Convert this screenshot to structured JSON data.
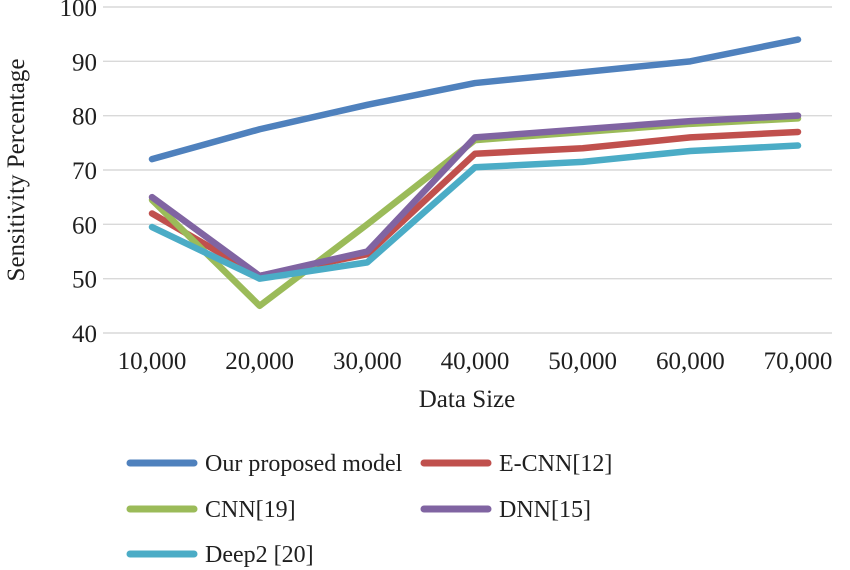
{
  "chart_data": {
    "type": "line",
    "title": "",
    "xlabel": "Data Size",
    "ylabel": "Sensitivity Percentage",
    "categories": [
      "10,000",
      "20,000",
      "30,000",
      "40,000",
      "50,000",
      "60,000",
      "70,000"
    ],
    "series": [
      {
        "name": "Our proposed model",
        "color": "#4F81BD",
        "values": [
          72,
          77.5,
          82,
          86,
          88,
          90,
          94
        ]
      },
      {
        "name": "E-CNN[12]",
        "color": "#C0504D",
        "values": [
          62,
          50.5,
          54.5,
          73,
          74,
          76,
          77
        ]
      },
      {
        "name": "CNN[19]",
        "color": "#9BBB59",
        "values": [
          64.5,
          45,
          60,
          75.5,
          77,
          78.5,
          79.5
        ]
      },
      {
        "name": "DNN[15]",
        "color": "#8064A2",
        "values": [
          65,
          50.5,
          55,
          76,
          77.5,
          79,
          80
        ]
      },
      {
        "name": "Deep2 [20]",
        "color": "#4BACC6",
        "values": [
          59.5,
          50,
          53,
          70.5,
          71.5,
          73.5,
          74.5
        ]
      }
    ],
    "ylim": [
      40,
      100
    ],
    "yticks": [
      100,
      90,
      80,
      70,
      60,
      50,
      40
    ],
    "grid": "horizontal",
    "gridline_color": "#D9D9D9",
    "axis_text_color": "#1f1f1f",
    "legend_position": "bottom-left",
    "legend_layout": [
      {
        "series": 0,
        "col": 0,
        "row": 0
      },
      {
        "series": 1,
        "col": 1,
        "row": 0
      },
      {
        "series": 2,
        "col": 0,
        "row": 1
      },
      {
        "series": 3,
        "col": 1,
        "row": 1
      },
      {
        "series": 4,
        "col": 0,
        "row": 2
      }
    ]
  },
  "colors": {
    "background": "#FFFFFF"
  }
}
